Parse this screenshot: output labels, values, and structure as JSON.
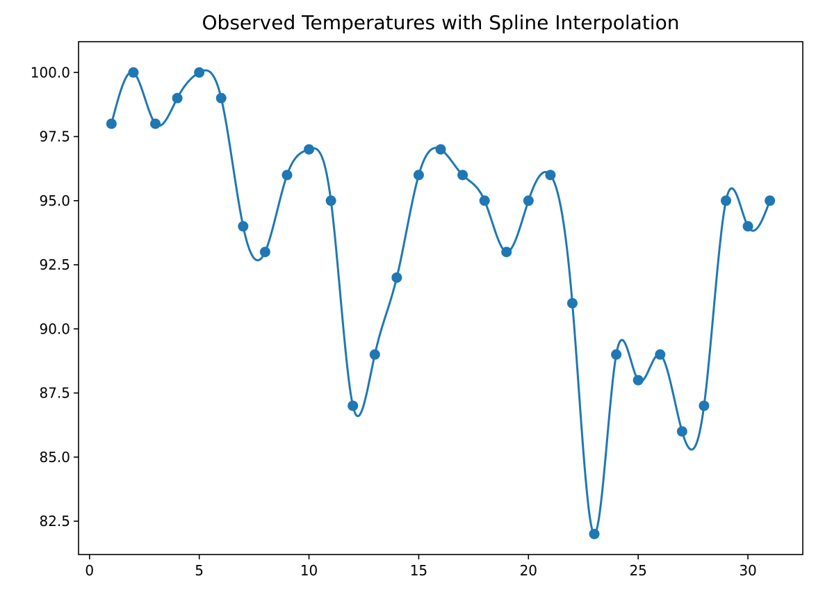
{
  "chart_data": {
    "type": "line",
    "title": "Observed Temperatures with Spline Interpolation",
    "xlabel": "",
    "ylabel": "",
    "xlim": [
      -0.5,
      32.5
    ],
    "ylim": [
      81.2,
      101.2
    ],
    "x_ticks": [
      0,
      5,
      10,
      15,
      20,
      25,
      30
    ],
    "x_tick_labels": [
      "0",
      "5",
      "10",
      "15",
      "20",
      "25",
      "30"
    ],
    "y_ticks": [
      82.5,
      85.0,
      87.5,
      90.0,
      92.5,
      95.0,
      97.5,
      100.0
    ],
    "y_tick_labels": [
      "82.5",
      "85.0",
      "87.5",
      "90.0",
      "92.5",
      "95.0",
      "97.5",
      "100.0"
    ],
    "grid": false,
    "legend": "none",
    "series": [
      {
        "style": "markers+spline",
        "color": "#1f77b4",
        "x": [
          1,
          2,
          3,
          4,
          5,
          6,
          7,
          8,
          9,
          10,
          11,
          12,
          13,
          14,
          15,
          16,
          17,
          18,
          19,
          20,
          21,
          22,
          23,
          24,
          25,
          26,
          27,
          28,
          29,
          30,
          31
        ],
        "y": [
          98,
          100,
          98,
          99,
          100,
          99,
          94,
          93,
          96,
          97,
          95,
          87,
          89,
          92,
          96,
          97,
          96,
          95,
          93,
          95,
          96,
          91,
          82,
          89,
          88,
          89,
          86,
          87,
          95,
          94,
          95
        ]
      }
    ]
  }
}
